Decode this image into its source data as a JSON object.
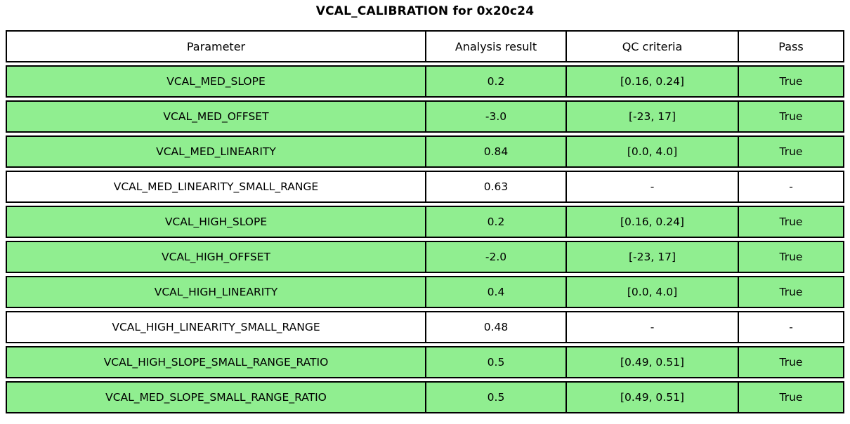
{
  "chart_data": {
    "type": "table",
    "title": "VCAL_CALIBRATION for 0x20c24",
    "columns": [
      "Parameter",
      "Analysis result",
      "QC criteria",
      "Pass"
    ],
    "rows": [
      {
        "parameter": "VCAL_MED_SLOPE",
        "result": "0.2",
        "qc": "[0.16, 0.24]",
        "pass": "True",
        "highlight": true
      },
      {
        "parameter": "VCAL_MED_OFFSET",
        "result": "-3.0",
        "qc": "[-23, 17]",
        "pass": "True",
        "highlight": true
      },
      {
        "parameter": "VCAL_MED_LINEARITY",
        "result": "0.84",
        "qc": "[0.0, 4.0]",
        "pass": "True",
        "highlight": true
      },
      {
        "parameter": "VCAL_MED_LINEARITY_SMALL_RANGE",
        "result": "0.63",
        "qc": "-",
        "pass": "-",
        "highlight": false
      },
      {
        "parameter": "VCAL_HIGH_SLOPE",
        "result": "0.2",
        "qc": "[0.16, 0.24]",
        "pass": "True",
        "highlight": true
      },
      {
        "parameter": "VCAL_HIGH_OFFSET",
        "result": "-2.0",
        "qc": "[-23, 17]",
        "pass": "True",
        "highlight": true
      },
      {
        "parameter": "VCAL_HIGH_LINEARITY",
        "result": "0.4",
        "qc": "[0.0, 4.0]",
        "pass": "True",
        "highlight": true
      },
      {
        "parameter": "VCAL_HIGH_LINEARITY_SMALL_RANGE",
        "result": "0.48",
        "qc": "-",
        "pass": "-",
        "highlight": false
      },
      {
        "parameter": "VCAL_HIGH_SLOPE_SMALL_RANGE_RATIO",
        "result": "0.5",
        "qc": "[0.49, 0.51]",
        "pass": "True",
        "highlight": true
      },
      {
        "parameter": "VCAL_MED_SLOPE_SMALL_RANGE_RATIO",
        "result": "0.5",
        "qc": "[0.49, 0.51]",
        "pass": "True",
        "highlight": true
      }
    ],
    "layout": {
      "legend": "none",
      "grid": "cell-borders",
      "highlight_meaning": "row passes QC"
    }
  },
  "colors": {
    "pass_green": "#90ee90",
    "border": "#000000",
    "background": "#ffffff",
    "text": "#000000"
  }
}
